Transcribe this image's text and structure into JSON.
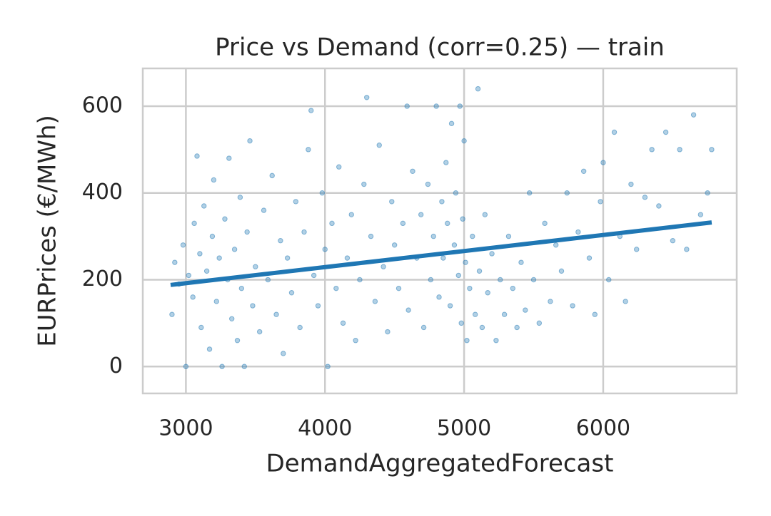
{
  "chart_data": {
    "type": "scatter",
    "title": "Price vs Demand (corr=0.25) — train",
    "xlabel": "DemandAggregatedForecast",
    "ylabel": "EURPrices (€/MWh)",
    "xlim": [
      2690,
      6960
    ],
    "ylim": [
      -62,
      687
    ],
    "xticks": [
      3000,
      4000,
      5000,
      6000
    ],
    "yticks": [
      0,
      200,
      400,
      600
    ],
    "grid": true,
    "series": [
      {
        "type": "scatter",
        "color": "#1f77b4",
        "x": [
          2900,
          2920,
          2950,
          2980,
          3000,
          3020,
          3050,
          3060,
          3080,
          3100,
          3110,
          3130,
          3150,
          3170,
          3190,
          3200,
          3220,
          3240,
          3260,
          3280,
          3300,
          3310,
          3330,
          3350,
          3370,
          3390,
          3400,
          3420,
          3440,
          3460,
          3480,
          3500,
          3530,
          3560,
          3590,
          3620,
          3650,
          3680,
          3700,
          3730,
          3760,
          3790,
          3820,
          3850,
          3880,
          3900,
          3920,
          3950,
          3980,
          4000,
          4020,
          4050,
          4080,
          4100,
          4130,
          4160,
          4190,
          4220,
          4250,
          4280,
          4300,
          4330,
          4360,
          4390,
          4420,
          4450,
          4480,
          4500,
          4530,
          4560,
          4590,
          4600,
          4630,
          4660,
          4690,
          4710,
          4740,
          4760,
          4780,
          4800,
          4820,
          4840,
          4850,
          4870,
          4880,
          4900,
          4910,
          4930,
          4940,
          4960,
          4970,
          4980,
          4990,
          5000,
          5010,
          5020,
          5040,
          5060,
          5080,
          5100,
          5110,
          5130,
          5150,
          5170,
          5200,
          5230,
          5260,
          5290,
          5320,
          5350,
          5380,
          5410,
          5440,
          5470,
          5500,
          5540,
          5580,
          5620,
          5660,
          5700,
          5740,
          5780,
          5820,
          5860,
          5900,
          5940,
          5980,
          6000,
          6040,
          6080,
          6120,
          6160,
          6200,
          6240,
          6300,
          6350,
          6400,
          6450,
          6500,
          6550,
          6600,
          6650,
          6700,
          6750,
          6780
        ],
        "values": [
          120,
          240,
          190,
          280,
          0,
          210,
          160,
          330,
          485,
          260,
          90,
          370,
          220,
          40,
          300,
          430,
          150,
          250,
          0,
          340,
          200,
          480,
          110,
          270,
          60,
          390,
          180,
          0,
          310,
          520,
          140,
          230,
          80,
          360,
          200,
          440,
          120,
          290,
          30,
          250,
          170,
          380,
          90,
          310,
          500,
          590,
          210,
          140,
          400,
          270,
          0,
          330,
          180,
          460,
          100,
          250,
          350,
          60,
          200,
          420,
          620,
          300,
          150,
          510,
          230,
          80,
          380,
          280,
          180,
          330,
          600,
          130,
          450,
          250,
          350,
          90,
          420,
          200,
          300,
          600,
          160,
          380,
          250,
          470,
          330,
          140,
          560,
          280,
          400,
          210,
          600,
          100,
          340,
          520,
          240,
          60,
          180,
          300,
          120,
          640,
          220,
          90,
          350,
          170,
          260,
          60,
          200,
          120,
          300,
          180,
          90,
          240,
          130,
          400,
          200,
          100,
          330,
          150,
          280,
          220,
          400,
          140,
          310,
          450,
          250,
          120,
          380,
          470,
          200,
          540,
          300,
          150,
          420,
          270,
          390,
          500,
          370,
          540,
          290,
          500,
          270,
          580,
          350,
          400,
          500
        ]
      },
      {
        "type": "line",
        "color": "#1f77b4",
        "x": [
          2890,
          6780
        ],
        "values": [
          188,
          332
        ]
      }
    ]
  }
}
